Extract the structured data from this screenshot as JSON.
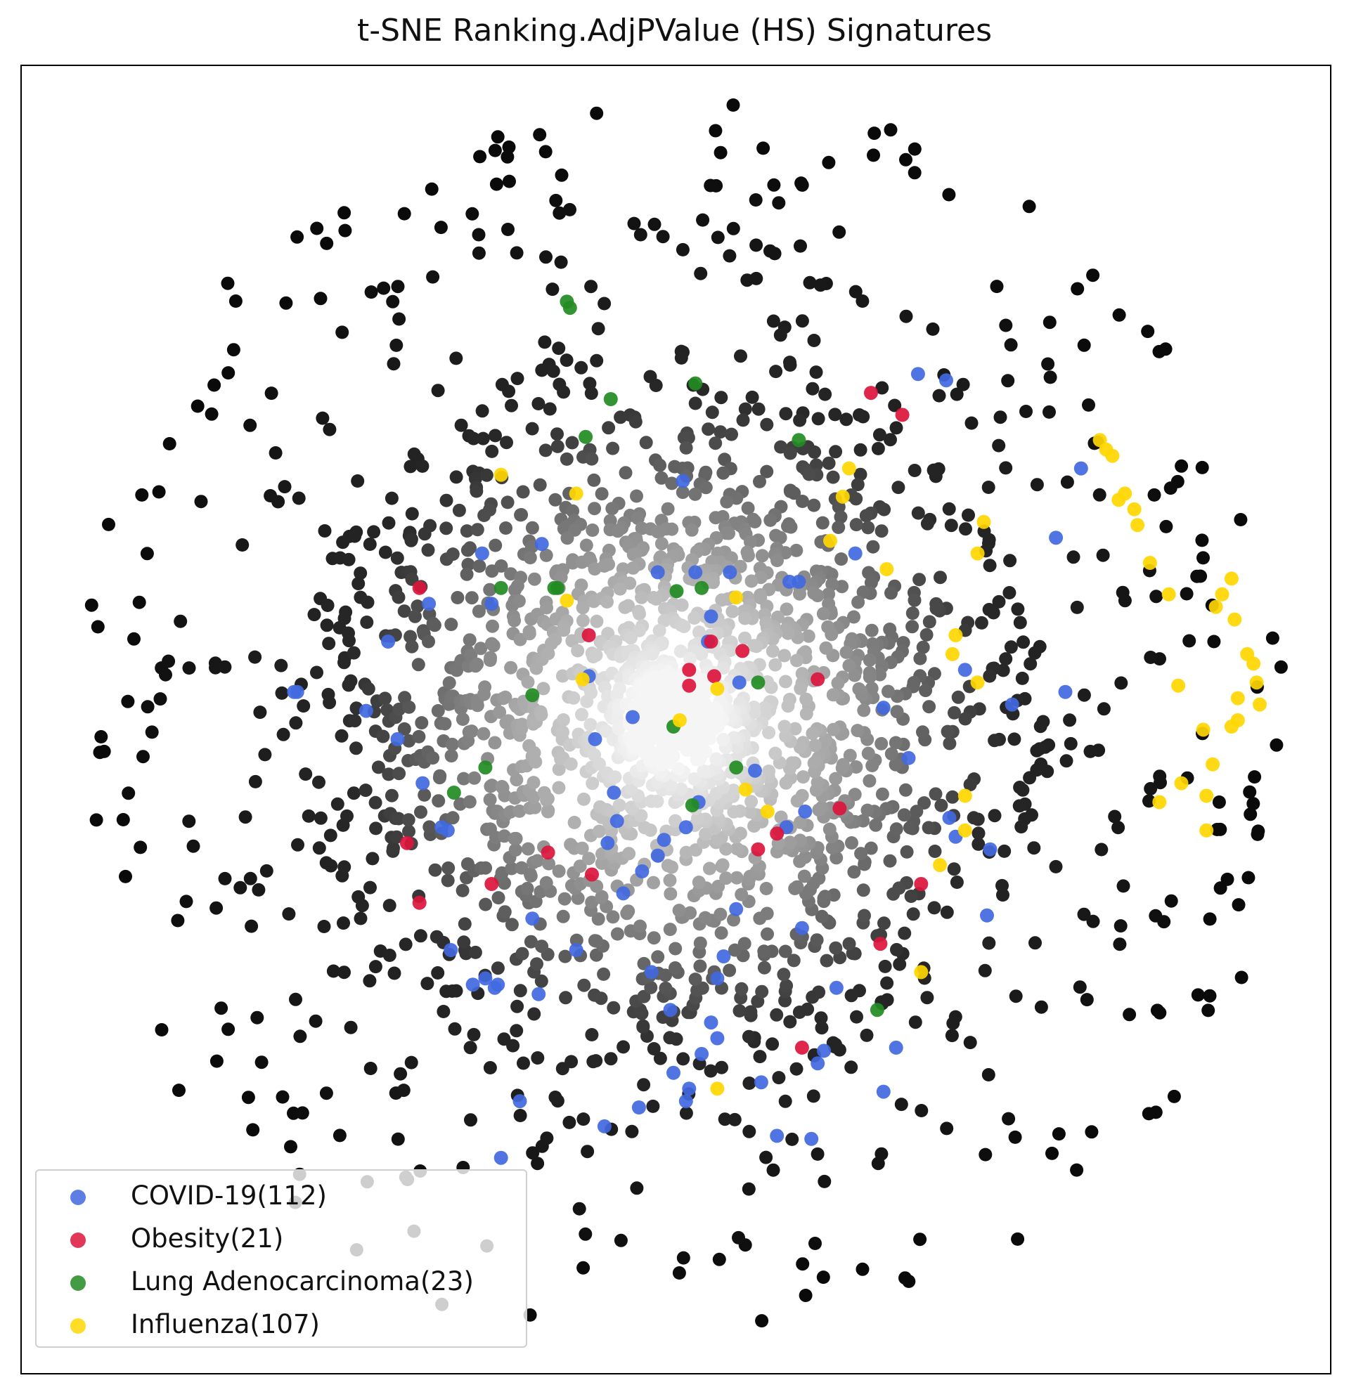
{
  "chart_data": {
    "type": "scatter",
    "title": "t-SNE Ranking.AdjPValue (HS) Signatures",
    "xlabel": "",
    "ylabel": "",
    "axes_ticks": false,
    "grid": false,
    "legend_position": "lower-left",
    "background_points": {
      "count_estimate": 2500,
      "color_scheme": "grayscale density: white at center, black at periphery"
    },
    "series": [
      {
        "name": "COVID-19(112)",
        "color": "#4169e1",
        "points": [
          [
            1.0,
            -0.62
          ],
          [
            1.01,
            -0.41
          ],
          [
            0.9,
            -0.37
          ],
          [
            0.88,
            -0.31
          ],
          [
            1.08,
            0.05
          ],
          [
            1.25,
            0.09
          ],
          [
            1.22,
            0.58
          ],
          [
            1.3,
            0.8
          ],
          [
            0.78,
            1.1
          ],
          [
            0.87,
            1.08
          ],
          [
            -0.49,
            -1.21
          ],
          [
            -0.43,
            -0.87
          ],
          [
            -0.31,
            -0.73
          ],
          [
            -0.55,
            -1.39
          ],
          [
            0.12,
            -0.96
          ],
          [
            0.14,
            -0.82
          ],
          [
            0.16,
            -0.75
          ],
          [
            0.14,
            -1.01
          ],
          [
            0.33,
            -1.32
          ],
          [
            0.05,
            -1.17
          ],
          [
            0.09,
            -1.06
          ],
          [
            0.0,
            -1.12
          ],
          [
            -0.11,
            -1.23
          ],
          [
            -0.01,
            -0.92
          ],
          [
            -0.16,
            -0.55
          ],
          [
            -0.07,
            -0.8
          ],
          [
            0.2,
            -0.6
          ],
          [
            0.36,
            -0.34
          ],
          [
            0.42,
            -0.29
          ],
          [
            0.26,
            -0.16
          ],
          [
            0.21,
            0.12
          ],
          [
            0.18,
            0.47
          ],
          [
            -0.21,
            -0.39
          ],
          [
            -0.18,
            -0.32
          ],
          [
            -0.25,
            -0.06
          ],
          [
            -0.27,
            0.14
          ],
          [
            -0.42,
            0.56
          ],
          [
            -0.58,
            0.37
          ],
          [
            -0.45,
            -0.63
          ],
          [
            -0.6,
            -0.82
          ],
          [
            -0.57,
            -0.85
          ],
          [
            -0.56,
            -0.84
          ],
          [
            -0.71,
            -0.73
          ],
          [
            -0.74,
            -0.34
          ],
          [
            -0.8,
            -0.2
          ],
          [
            -0.88,
            -0.06
          ],
          [
            -0.91,
            0.25
          ],
          [
            -1.2,
            0.09
          ],
          [
            -0.98,
            0.03
          ],
          [
            0.04,
            -0.34
          ],
          [
            0.08,
            -0.26
          ],
          [
            -0.03,
            -0.38
          ],
          [
            -0.1,
            -0.48
          ],
          [
            -0.05,
            -0.43
          ],
          [
            -0.19,
            -0.23
          ],
          [
            -0.13,
            0.01
          ],
          [
            0.11,
            0.25
          ],
          [
            0.03,
            0.76
          ],
          [
            0.12,
            0.33
          ],
          [
            0.07,
            0.47
          ],
          [
            0.37,
            0.44
          ],
          [
            0.58,
            0.53
          ],
          [
            0.67,
            0.04
          ],
          [
            0.75,
            -0.12
          ],
          [
            0.93,
            0.16
          ],
          [
            0.41,
            -0.66
          ],
          [
            0.52,
            -0.85
          ],
          [
            0.71,
            -1.04
          ],
          [
            0.48,
            -1.05
          ],
          [
            0.46,
            -1.09
          ],
          [
            0.44,
            -1.33
          ],
          [
            0.67,
            -1.18
          ],
          [
            0.04,
            -1.21
          ],
          [
            -0.22,
            -1.29
          ],
          [
            0.28,
            -1.15
          ],
          [
            -0.64,
            -0.84
          ],
          [
            -0.72,
            -0.35
          ],
          [
            -1.21,
            0.09
          ],
          [
            -0.61,
            0.53
          ],
          [
            -0.78,
            0.37
          ],
          [
            -0.05,
            0.47
          ],
          [
            0.4,
            0.44
          ]
        ]
      },
      {
        "name": "Obesity(21)",
        "color": "#dc143c",
        "points": [
          [
            0.12,
            0.25
          ],
          [
            0.22,
            0.22
          ],
          [
            0.05,
            0.16
          ],
          [
            0.05,
            0.11
          ],
          [
            0.13,
            0.14
          ],
          [
            0.46,
            0.13
          ],
          [
            0.53,
            -0.28
          ],
          [
            0.33,
            -0.36
          ],
          [
            0.79,
            -0.52
          ],
          [
            0.66,
            -0.71
          ],
          [
            -0.26,
            -0.49
          ],
          [
            -0.4,
            -0.42
          ],
          [
            -0.58,
            -0.52
          ],
          [
            -0.81,
            -0.58
          ],
          [
            0.41,
            -1.04
          ],
          [
            0.27,
            -0.41
          ],
          [
            -0.27,
            0.27
          ],
          [
            -0.81,
            0.42
          ],
          [
            -0.85,
            -0.39
          ],
          [
            0.63,
            1.04
          ],
          [
            0.73,
            0.97
          ]
        ]
      },
      {
        "name": "Lung Adenocarcinoma(23)",
        "color": "#228b22",
        "points": [
          [
            -0.34,
            1.33
          ],
          [
            -0.33,
            1.31
          ],
          [
            -0.2,
            1.02
          ],
          [
            -0.28,
            0.9
          ],
          [
            0.07,
            1.07
          ],
          [
            0.4,
            0.89
          ],
          [
            -0.37,
            0.42
          ],
          [
            0.01,
            0.41
          ],
          [
            0.09,
            0.42
          ],
          [
            -0.38,
            0.42
          ],
          [
            -0.55,
            0.42
          ],
          [
            -0.45,
            0.08
          ],
          [
            -0.6,
            -0.15
          ],
          [
            -0.7,
            -0.23
          ],
          [
            0.27,
            0.12
          ],
          [
            0.06,
            -0.27
          ],
          [
            0.2,
            -0.15
          ],
          [
            0.65,
            -0.92
          ],
          [
            0.0,
            -0.02
          ]
        ]
      },
      {
        "name": "Influenza(107)",
        "color": "#ffd700",
        "points": [
          [
            1.52,
            0.5
          ],
          [
            1.58,
            0.4
          ],
          [
            1.73,
            0.36
          ],
          [
            1.78,
            0.45
          ],
          [
            1.79,
            0.32
          ],
          [
            1.83,
            0.21
          ],
          [
            1.86,
            0.12
          ],
          [
            1.87,
            0.05
          ],
          [
            1.8,
            0.07
          ],
          [
            1.78,
            -0.02
          ],
          [
            1.69,
            -0.03
          ],
          [
            1.61,
            0.11
          ],
          [
            1.72,
            -0.14
          ],
          [
            1.7,
            -0.24
          ],
          [
            1.62,
            -0.2
          ],
          [
            1.55,
            -0.26
          ],
          [
            1.7,
            -0.35
          ],
          [
            1.85,
            0.18
          ],
          [
            1.8,
            0.0
          ],
          [
            1.75,
            0.4
          ],
          [
            1.48,
            0.62
          ],
          [
            1.44,
            0.72
          ],
          [
            1.38,
            0.86
          ],
          [
            1.36,
            0.89
          ],
          [
            1.47,
            0.67
          ],
          [
            1.42,
            0.7
          ],
          [
            1.4,
            0.84
          ],
          [
            0.99,
            0.63
          ],
          [
            0.97,
            0.53
          ],
          [
            0.9,
            0.27
          ],
          [
            0.89,
            0.21
          ],
          [
            0.97,
            0.12
          ],
          [
            0.93,
            -0.24
          ],
          [
            0.93,
            -0.35
          ],
          [
            0.85,
            -0.46
          ],
          [
            0.3,
            -0.29
          ],
          [
            0.14,
            0.1
          ],
          [
            0.02,
            0.0
          ],
          [
            -0.29,
            0.13
          ],
          [
            -0.34,
            0.38
          ],
          [
            -0.31,
            0.72
          ],
          [
            -0.55,
            0.78
          ],
          [
            0.2,
            0.39
          ],
          [
            0.23,
            -0.22
          ],
          [
            0.14,
            -1.17
          ],
          [
            0.56,
            0.8
          ],
          [
            0.5,
            0.57
          ],
          [
            0.68,
            0.48
          ],
          [
            0.54,
            0.71
          ],
          [
            0.79,
            -0.8
          ]
        ]
      }
    ]
  },
  "colors": {
    "background_point_dark": "#101010",
    "background_point_light": "#ffffff"
  }
}
